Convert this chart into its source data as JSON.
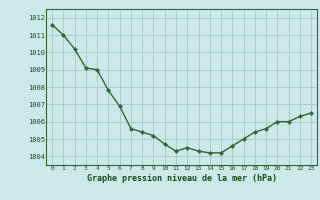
{
  "x": [
    0,
    1,
    2,
    3,
    4,
    5,
    6,
    7,
    8,
    9,
    10,
    11,
    12,
    13,
    14,
    15,
    16,
    17,
    18,
    19,
    20,
    21,
    22,
    23
  ],
  "y": [
    1011.6,
    1011.0,
    1010.2,
    1009.1,
    1009.0,
    1007.8,
    1006.9,
    1005.6,
    1005.4,
    1005.2,
    1004.7,
    1004.3,
    1004.5,
    1004.3,
    1004.2,
    1004.2,
    1004.6,
    1005.0,
    1005.4,
    1005.6,
    1006.0,
    1006.0,
    1006.3,
    1006.5
  ],
  "xlabel": "Graphe pression niveau de la mer (hPa)",
  "ylim": [
    1003.5,
    1012.5
  ],
  "yticks": [
    1004,
    1005,
    1006,
    1007,
    1008,
    1009,
    1010,
    1011,
    1012
  ],
  "xticks": [
    0,
    1,
    2,
    3,
    4,
    5,
    6,
    7,
    8,
    9,
    10,
    11,
    12,
    13,
    14,
    15,
    16,
    17,
    18,
    19,
    20,
    21,
    22,
    23
  ],
  "line_color": "#336633",
  "marker_color": "#336633",
  "bg_color": "#cce8e8",
  "grid_color": "#aacccc",
  "label_color": "#1a4d1a",
  "tick_label_color": "#1a4d1a"
}
